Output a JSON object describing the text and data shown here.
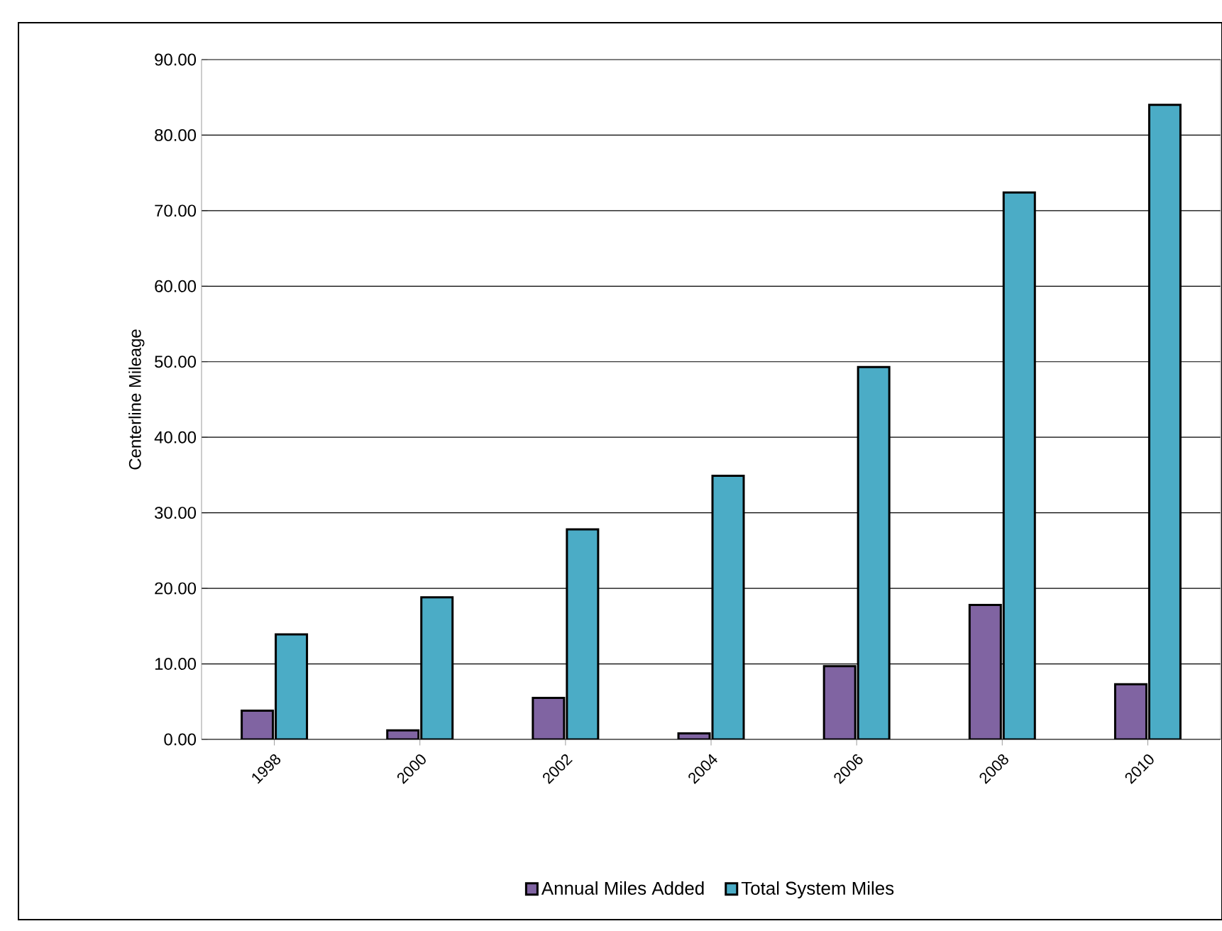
{
  "chart_data": {
    "type": "bar",
    "ylabel": "Centerline Mileage",
    "categories": [
      "1998",
      "2000",
      "2002",
      "2004",
      "2006",
      "2008",
      "2010"
    ],
    "series": [
      {
        "name": "Annual Miles Added",
        "color": "#8064a2",
        "values": [
          3.8,
          1.2,
          5.5,
          0.8,
          9.7,
          17.8,
          7.3
        ]
      },
      {
        "name": "Total System Miles",
        "color": "#4bacc6",
        "values": [
          13.9,
          18.8,
          27.8,
          34.9,
          49.3,
          72.4,
          84.0
        ]
      }
    ],
    "ylim": [
      0,
      90
    ],
    "yticks": [
      {
        "value": 0,
        "label": "0.00"
      },
      {
        "value": 10,
        "label": "10.00"
      },
      {
        "value": 20,
        "label": "20.00"
      },
      {
        "value": 30,
        "label": "30.00"
      },
      {
        "value": 40,
        "label": "40.00"
      },
      {
        "value": 50,
        "label": "50.00"
      },
      {
        "value": 60,
        "label": "60.00"
      },
      {
        "value": 70,
        "label": "70.00"
      },
      {
        "value": 80,
        "label": "80.00"
      },
      {
        "value": 90,
        "label": "90.00"
      }
    ],
    "grid": "y",
    "legend": "bottom"
  }
}
